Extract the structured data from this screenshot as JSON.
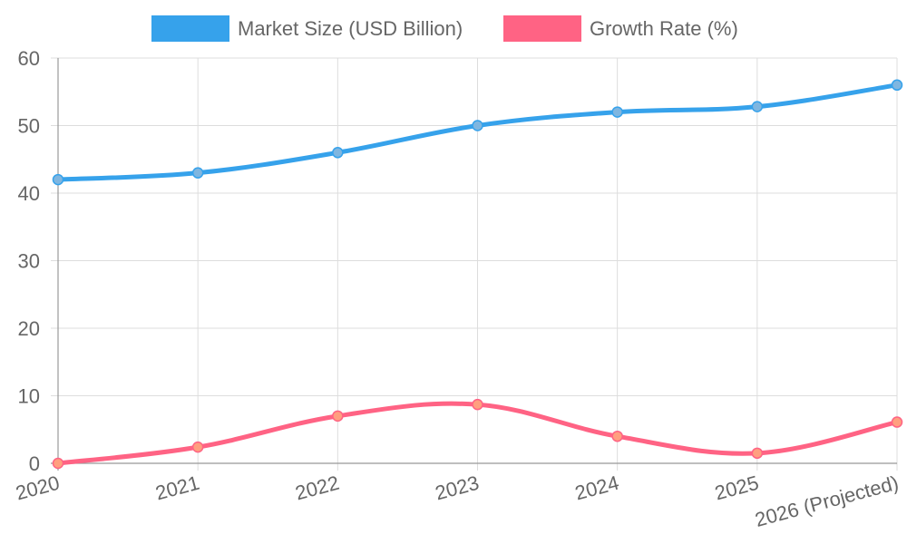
{
  "chart_data": {
    "type": "line",
    "categories": [
      "2020",
      "2021",
      "2022",
      "2023",
      "2024",
      "2025",
      "2026 (Projected)"
    ],
    "series": [
      {
        "name": "Market Size (USD Billion)",
        "color": "#36a2eb",
        "point_fill": "#7fb6e0",
        "values": [
          42,
          43,
          46,
          50,
          52,
          52.8,
          56
        ]
      },
      {
        "name": "Growth Rate (%)",
        "color": "#ff6384",
        "point_fill": "#ff9f7f",
        "values": [
          0,
          2.4,
          7,
          8.7,
          4,
          1.5,
          6.1
        ]
      }
    ],
    "ylim": [
      0,
      60
    ],
    "yticks": [
      0,
      10,
      20,
      30,
      40,
      50,
      60
    ],
    "grid": true,
    "legend_position": "top-center"
  }
}
